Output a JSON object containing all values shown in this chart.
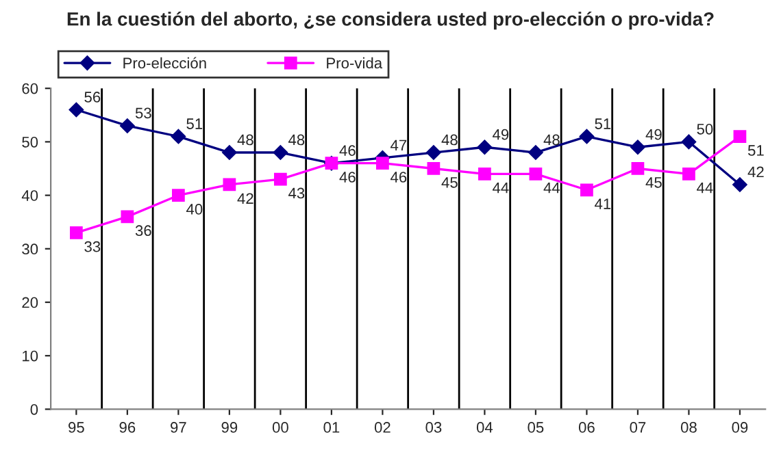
{
  "chart_data": {
    "type": "line",
    "title": "En la cuestión del aborto, ¿se considera usted pro-elección o pro-vida?",
    "categories": [
      "95",
      "96",
      "97",
      "99",
      "00",
      "01",
      "02",
      "03",
      "04",
      "05",
      "06",
      "07",
      "08",
      "09"
    ],
    "series": [
      {
        "name": "Pro-elección",
        "color": "#000080",
        "marker": "diamond",
        "values": [
          56,
          53,
          51,
          48,
          48,
          46,
          47,
          48,
          49,
          48,
          51,
          49,
          50,
          42
        ]
      },
      {
        "name": "Pro-vida",
        "color": "#ff00ff",
        "marker": "square",
        "values": [
          33,
          36,
          40,
          42,
          43,
          46,
          46,
          45,
          44,
          44,
          41,
          45,
          44,
          51
        ]
      }
    ],
    "ylim": [
      0,
      60
    ],
    "yticks": [
      0,
      10,
      20,
      30,
      40,
      50,
      60
    ],
    "grid": "x",
    "legend": "top left",
    "data_labels": true,
    "line_style": "solid"
  }
}
